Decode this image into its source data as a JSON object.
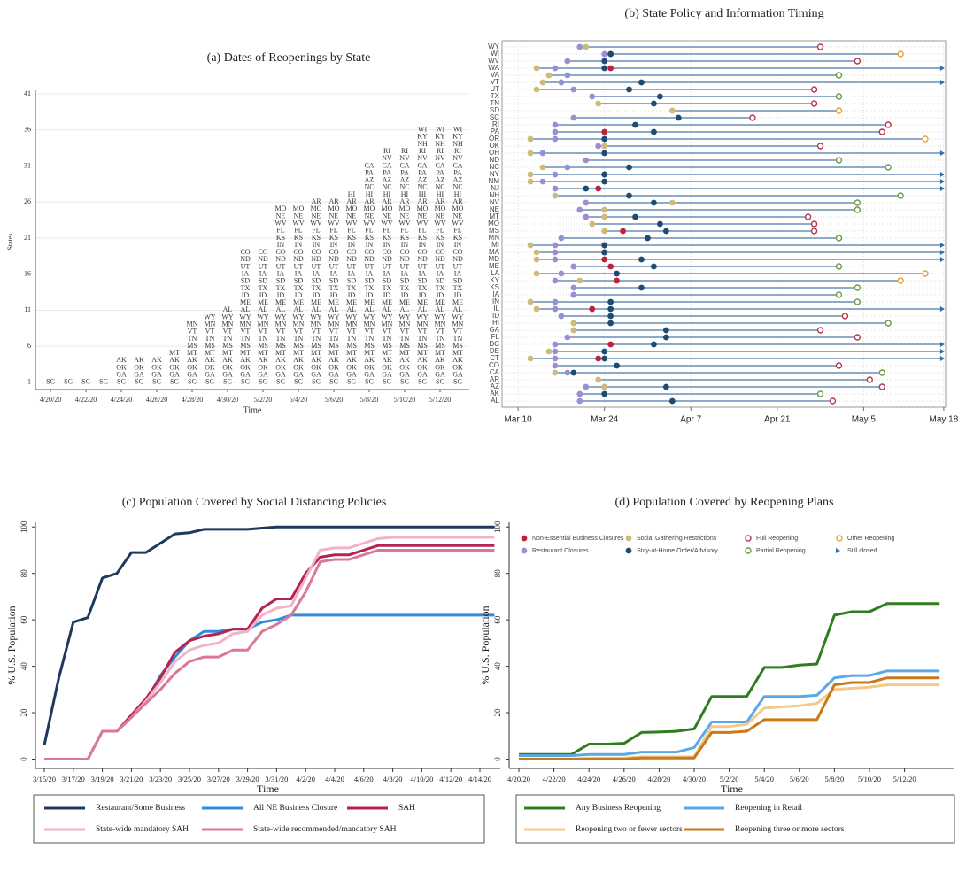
{
  "chart_data": [
    {
      "type": "text-stack",
      "title": "(a) Dates of Reopenings by State",
      "x_label": "Time",
      "y_label": "States",
      "categories": [
        "4/20/20",
        null,
        "4/22/20",
        null,
        "4/24/20",
        null,
        "4/26/20",
        null,
        "4/28/20",
        null,
        "4/30/20",
        null,
        "5/2/20",
        null,
        "5/4/20",
        null,
        "5/6/20",
        null,
        "5/8/20",
        null,
        "5/10/20",
        null,
        "5/12/20",
        null
      ],
      "values": [
        1,
        1,
        1,
        1,
        4,
        4,
        4,
        5,
        9,
        10,
        11,
        19,
        19,
        25,
        25,
        26,
        26,
        27,
        31,
        33,
        33,
        36,
        36,
        36
      ],
      "states": [
        "SC",
        "GA",
        "OK",
        "AK",
        "MT",
        "MS",
        "TN",
        "VT",
        "MN",
        "WY",
        "AL",
        "ME",
        "ID",
        "TX",
        "SD",
        "IA",
        "UT",
        "ND",
        "CO",
        "IN",
        "KS",
        "FL",
        "WV",
        "NE",
        "MO",
        "AR",
        "HI",
        "NC",
        "AZ",
        "PA",
        "CA",
        "NV",
        "RI",
        "NH",
        "KY",
        "WI"
      ],
      "ylim": [
        0,
        41
      ],
      "yticks": [
        1,
        6,
        11,
        16,
        21,
        26,
        31,
        36,
        41
      ],
      "grid": true
    },
    {
      "type": "timeline",
      "title": "(b) State Policy and Information Timing",
      "categories": [
        "AL",
        "AK",
        "AZ",
        "AR",
        "CA",
        "CO",
        "CT",
        "DE",
        "DC",
        "FL",
        "GA",
        "HI",
        "ID",
        "IL",
        "IN",
        "IA",
        "KS",
        "KY",
        "LA",
        "ME",
        "MD",
        "MA",
        "MI",
        "MN",
        "MS",
        "MO",
        "MT",
        "NE",
        "NV",
        "NH",
        "NJ",
        "NM",
        "NY",
        "NC",
        "ND",
        "OH",
        "OK",
        "OR",
        "PA",
        "RI",
        "SC",
        "SD",
        "TN",
        "TX",
        "UT",
        "VT",
        "VA",
        "WA",
        "WV",
        "WI",
        "WY"
      ],
      "xlim": [
        67.4,
        139.3
      ],
      "xticks": [
        {
          "value": 70,
          "label": "Mar 10"
        },
        {
          "value": 84,
          "label": "Mar 24"
        },
        {
          "value": 98,
          "label": "Apr 7"
        },
        {
          "value": 112,
          "label": "Apr 21"
        },
        {
          "value": 126,
          "label": "May 5"
        },
        {
          "value": 139,
          "label": "May 18"
        }
      ],
      "grid": true,
      "line_color": "#4a78a8",
      "series": [
        {
          "name": "Non-Essential Business Closures",
          "color": "#c0203a",
          "marker": "filled",
          "values": [
            null,
            null,
            null,
            null,
            null,
            null,
            83,
            null,
            85,
            null,
            null,
            null,
            null,
            82,
            null,
            null,
            null,
            86,
            null,
            85,
            84,
            84,
            84,
            null,
            87,
            null,
            null,
            null,
            null,
            null,
            83,
            null,
            84,
            null,
            null,
            null,
            null,
            null,
            84,
            null,
            null,
            null,
            null,
            null,
            null,
            null,
            null,
            85,
            null,
            85,
            null
          ]
        },
        {
          "name": "Social Gathering Restrictions",
          "color": "#cdbb7a",
          "marker": "filled",
          "values": [
            null,
            null,
            84,
            83,
            76,
            null,
            72,
            75,
            null,
            null,
            79,
            79,
            null,
            73,
            72,
            79,
            null,
            80,
            73,
            79,
            73,
            73,
            72,
            null,
            84,
            82,
            84,
            84,
            95,
            76,
            null,
            72,
            72,
            74,
            null,
            72,
            84,
            72,
            null,
            null,
            null,
            95,
            83,
            null,
            73,
            74,
            75,
            73,
            null,
            null,
            81
          ]
        },
        {
          "name": "Full Reopening",
          "color": "#b8374a",
          "marker": "hollow",
          "values": [
            121,
            null,
            129,
            127,
            null,
            122,
            null,
            null,
            null,
            125,
            119,
            null,
            123,
            null,
            null,
            null,
            null,
            null,
            null,
            null,
            null,
            null,
            null,
            null,
            118,
            118,
            117,
            null,
            null,
            null,
            null,
            null,
            null,
            null,
            null,
            null,
            119,
            null,
            129,
            130,
            108,
            null,
            118,
            null,
            118,
            null,
            null,
            null,
            125,
            null,
            119
          ]
        },
        {
          "name": "Other Reopening",
          "color": "#e8a23a",
          "marker": "hollow",
          "values": [
            null,
            null,
            null,
            null,
            null,
            null,
            null,
            null,
            null,
            null,
            null,
            null,
            null,
            null,
            null,
            null,
            null,
            132,
            136,
            null,
            null,
            null,
            null,
            null,
            null,
            null,
            null,
            null,
            null,
            null,
            null,
            null,
            null,
            null,
            null,
            null,
            null,
            136,
            null,
            null,
            null,
            122,
            null,
            null,
            null,
            null,
            null,
            null,
            null,
            132,
            null
          ]
        },
        {
          "name": "Restaurant Closures",
          "color": "#9a8fd4",
          "marker": "filled",
          "values": [
            80,
            80,
            81,
            null,
            78,
            76,
            76,
            76,
            76,
            78,
            null,
            null,
            77,
            76,
            76,
            79,
            79,
            76,
            77,
            79,
            76,
            76,
            76,
            77,
            null,
            null,
            81,
            80,
            81,
            null,
            76,
            74,
            76,
            78,
            81,
            74,
            83,
            76,
            76,
            76,
            79,
            null,
            null,
            82,
            79,
            77,
            78,
            76,
            78,
            84,
            80
          ]
        },
        {
          "name": "Stay-at-Home Order/Advisory",
          "color": "#1f4a73",
          "marker": "filled",
          "values": [
            95,
            84,
            94,
            null,
            79,
            86,
            84,
            84,
            92,
            94,
            94,
            85,
            85,
            85,
            85,
            null,
            90,
            null,
            86,
            92,
            90,
            84,
            84,
            91,
            94,
            93,
            89,
            null,
            92,
            88,
            81,
            84,
            84,
            88,
            null,
            84,
            null,
            84,
            92,
            89,
            96,
            null,
            92,
            93,
            88,
            90,
            null,
            84,
            84,
            85,
            null
          ]
        },
        {
          "name": "Partial Reopening",
          "color": "#6f9a45",
          "marker": "hollow",
          "values": [
            null,
            119,
            null,
            null,
            129,
            null,
            null,
            null,
            null,
            null,
            null,
            130,
            null,
            null,
            125,
            122,
            125,
            null,
            null,
            122,
            null,
            null,
            null,
            122,
            null,
            null,
            null,
            125,
            125,
            132,
            null,
            null,
            null,
            130,
            122,
            null,
            null,
            null,
            null,
            null,
            null,
            null,
            null,
            122,
            null,
            null,
            122,
            null,
            null,
            null,
            null
          ]
        },
        {
          "name": "Still closed",
          "color": "#2f6fb0",
          "marker": "arrow",
          "values": [
            null,
            null,
            null,
            null,
            null,
            null,
            139,
            139,
            139,
            null,
            null,
            null,
            null,
            139,
            null,
            null,
            null,
            null,
            null,
            null,
            139,
            139,
            139,
            null,
            null,
            null,
            null,
            null,
            null,
            null,
            139,
            139,
            139,
            null,
            null,
            139,
            null,
            null,
            null,
            null,
            null,
            null,
            null,
            null,
            null,
            139,
            null,
            139,
            null,
            null,
            null
          ]
        }
      ]
    },
    {
      "type": "line",
      "title": "(c) Population Covered by Social Distancing Policies",
      "x_label": "Time",
      "y_label": "% U.S. Population",
      "categories": [
        "3/15/20",
        null,
        "3/17/20",
        null,
        "3/19/20",
        null,
        "3/21/20",
        null,
        "3/23/20",
        null,
        "3/25/20",
        null,
        "3/27/20",
        null,
        "3/29/20",
        null,
        "3/31/20",
        null,
        "4/2/20",
        null,
        "4/4/20",
        null,
        "4/6/20",
        null,
        "4/8/20",
        null,
        "4/10/20",
        null,
        "4/12/20",
        null,
        "4/14/20",
        null
      ],
      "ylim": [
        -4,
        102
      ],
      "yticks": [
        0,
        20,
        40,
        60,
        80,
        100
      ],
      "series": [
        {
          "name": "Restaurant/Some Business",
          "color": "#1d3a5c",
          "values": [
            6,
            35,
            59,
            61,
            78,
            80,
            89,
            89,
            93,
            97,
            97.5,
            99,
            99,
            99,
            99,
            99.5,
            100,
            100,
            100,
            100,
            100,
            100,
            100,
            100,
            100,
            100,
            100,
            100,
            100,
            100,
            100,
            100
          ]
        },
        {
          "name": "All NE Business Closure",
          "color": "#2f8be0",
          "values": [
            0,
            0,
            0,
            0,
            12,
            12,
            18,
            25,
            36,
            44,
            51,
            55,
            55,
            56,
            56,
            59,
            60,
            62,
            62,
            62,
            62,
            62,
            62,
            62,
            62,
            62,
            62,
            62,
            62,
            62,
            62,
            62
          ]
        },
        {
          "name": "SAH",
          "color": "#b5234f",
          "values": [
            0,
            0,
            0,
            0,
            12,
            12,
            19,
            26,
            35,
            46,
            51,
            53,
            54,
            56,
            56,
            65,
            69,
            69,
            80,
            87,
            88,
            88,
            90,
            92,
            92,
            92,
            92,
            92,
            92,
            92,
            92,
            92
          ]
        },
        {
          "name": "State-wide mandatory SAH",
          "color": "#f2b3c4",
          "values": [
            0,
            0,
            0,
            0,
            12,
            12,
            18,
            25,
            33,
            42,
            47,
            49,
            50,
            54,
            55,
            62,
            65,
            66,
            78,
            90,
            91,
            91,
            93,
            95,
            95.5,
            95.5,
            95.5,
            95.5,
            95.5,
            95.5,
            95.5,
            95.5
          ]
        },
        {
          "name": "State-wide recommended/mandatory SAH",
          "color": "#d9799a",
          "values": [
            0,
            0,
            0,
            0,
            12,
            12,
            18,
            24,
            30,
            37,
            42,
            44,
            44,
            47,
            47,
            55,
            58,
            62,
            72,
            85,
            86,
            86,
            88,
            90,
            90,
            90,
            90,
            90,
            90,
            90,
            90,
            90
          ]
        }
      ]
    },
    {
      "type": "line",
      "title": "(d) Population Covered by Reopening Plans",
      "x_label": "Time",
      "y_label": "% U.S. Population",
      "categories": [
        "4/20/20",
        null,
        "4/22/20",
        null,
        "4/24/20",
        null,
        "4/26/20",
        null,
        "4/28/20",
        null,
        "4/30/20",
        null,
        "5/2/20",
        null,
        "5/4/20",
        null,
        "5/6/20",
        null,
        "5/8/20",
        null,
        "5/10/20",
        null,
        "5/12/20",
        null,
        null
      ],
      "ylim": [
        -4,
        102
      ],
      "yticks": [
        0,
        20,
        40,
        60,
        80,
        100
      ],
      "series": [
        {
          "name": "Any Business Reopening",
          "color": "#2e7d1e",
          "values": [
            2,
            2,
            2,
            2,
            6.5,
            6.5,
            6.8,
            11.5,
            11.7,
            12,
            13,
            27,
            27,
            27,
            39.5,
            39.5,
            40.5,
            41,
            62,
            63.5,
            63.5,
            67,
            67,
            67,
            67
          ]
        },
        {
          "name": "Reopening in Retail",
          "color": "#5aa9e6",
          "values": [
            1.5,
            1.5,
            1.5,
            1.5,
            2,
            2,
            2,
            3,
            3,
            3,
            5,
            16,
            16,
            16,
            27,
            27,
            27,
            27.5,
            35,
            36,
            36,
            38,
            38,
            38,
            38
          ]
        },
        {
          "name": "Reopening two or fewer sectors",
          "color": "#f5c98a",
          "values": [
            0,
            0,
            0,
            0,
            0.5,
            0.5,
            0.5,
            1,
            1,
            1,
            1,
            14,
            14,
            15,
            22,
            22.5,
            23,
            24,
            30,
            30.5,
            31,
            32,
            32,
            32,
            32
          ]
        },
        {
          "name": "Reopening three or more sectors",
          "color": "#c87a1a",
          "values": [
            0,
            0,
            0,
            0,
            0,
            0,
            0,
            0.5,
            0.5,
            0.5,
            0.5,
            11.5,
            11.5,
            12,
            17,
            17,
            17,
            17,
            32,
            33,
            33,
            35,
            35,
            35,
            35
          ]
        }
      ]
    }
  ]
}
